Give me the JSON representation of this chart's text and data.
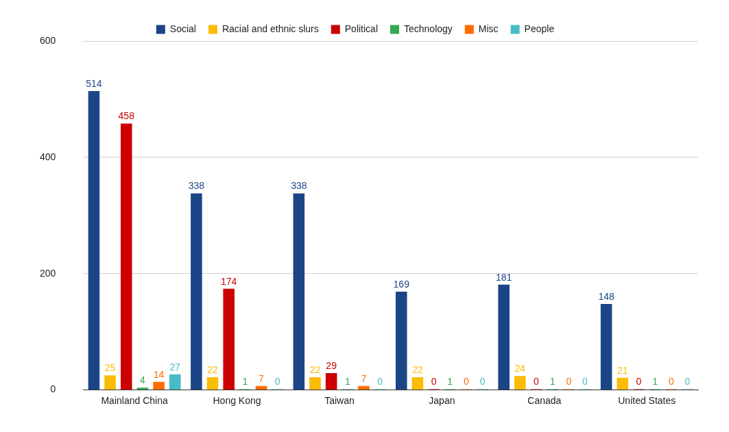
{
  "chart_data": {
    "type": "bar",
    "categories": [
      "Mainland China",
      "Hong Kong",
      "Taiwan",
      "Japan",
      "Canada",
      "United States"
    ],
    "series": [
      {
        "name": "Social",
        "color": "#1c4587",
        "values": [
          514,
          338,
          338,
          169,
          181,
          148
        ]
      },
      {
        "name": "Racial and ethnic slurs",
        "color": "#fbbc04",
        "values": [
          25,
          22,
          22,
          22,
          24,
          21
        ]
      },
      {
        "name": "Political",
        "color": "#cc0000",
        "values": [
          458,
          174,
          29,
          0,
          0,
          0
        ]
      },
      {
        "name": "Technology",
        "color": "#34a853",
        "values": [
          4,
          1,
          1,
          1,
          1,
          1
        ]
      },
      {
        "name": "Misc",
        "color": "#ff6d01",
        "values": [
          14,
          7,
          7,
          0,
          0,
          0
        ]
      },
      {
        "name": "People",
        "color": "#46bdc6",
        "values": [
          27,
          0,
          0,
          0,
          0,
          0
        ]
      }
    ],
    "ylim": [
      0,
      600
    ],
    "yticks": [
      0,
      200,
      400,
      600
    ],
    "grid": "y",
    "legend": "top",
    "data_labels": true
  }
}
